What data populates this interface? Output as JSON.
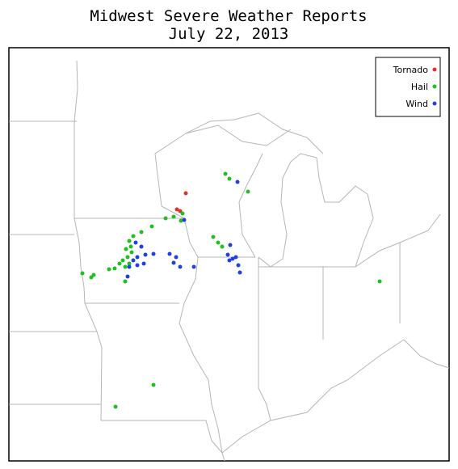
{
  "title": [
    "Midwest Severe Weather Reports",
    "July 22, 2013"
  ],
  "legend": [
    "Tornado",
    "Hail",
    "Wind"
  ]
}
